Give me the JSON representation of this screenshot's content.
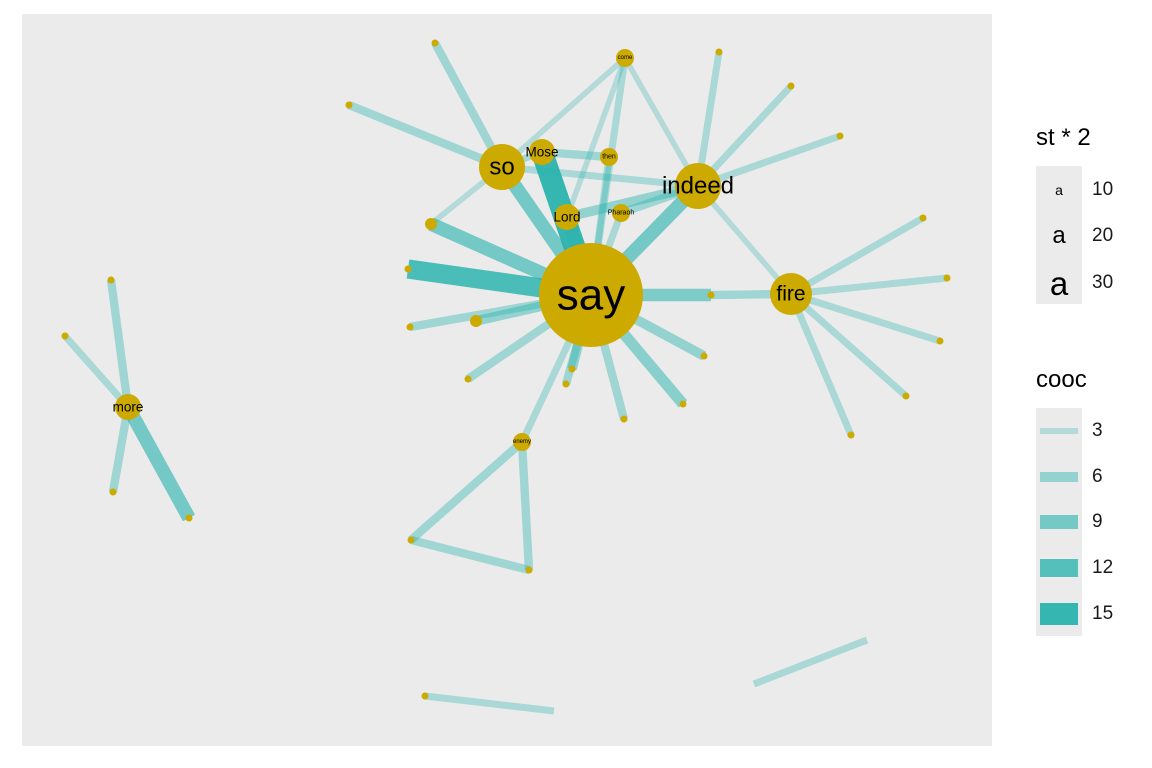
{
  "colors": {
    "panel": "#ebebeb",
    "node": "#ccaa00",
    "edge": "#2ab3ad",
    "label": "#000000"
  },
  "nodes": [
    {
      "id": "say",
      "label": "say",
      "st": 30,
      "degree": 20
    },
    {
      "id": "so",
      "label": "so",
      "st": 18,
      "degree": 8
    },
    {
      "id": "indeed",
      "label": "indeed",
      "st": 18,
      "degree": 8
    },
    {
      "id": "fire",
      "label": "fire",
      "st": 15,
      "degree": 8
    },
    {
      "id": "mose",
      "label": "Mose",
      "st": 10,
      "degree": 4
    },
    {
      "id": "lord",
      "label": "Lord",
      "st": 10,
      "degree": 4
    },
    {
      "id": "more",
      "label": "more",
      "st": 10,
      "degree": 4
    },
    {
      "id": "pharaoh",
      "label": "Pharaoh",
      "st": 6,
      "degree": 3
    },
    {
      "id": "then",
      "label": "then",
      "st": 6,
      "degree": 3
    },
    {
      "id": "come",
      "label": "come",
      "st": 5,
      "degree": 3
    },
    {
      "id": "enemy",
      "label": "enemy",
      "st": 5,
      "degree": 3
    },
    {
      "id": "n1",
      "label": "",
      "st": 3,
      "degree": 1
    },
    {
      "id": "n2",
      "label": "",
      "st": 3,
      "degree": 1
    },
    {
      "id": "n3",
      "label": "",
      "st": 3,
      "degree": 1
    },
    {
      "id": "n4",
      "label": "",
      "st": 3,
      "degree": 1
    },
    {
      "id": "n5",
      "label": "",
      "st": 3,
      "degree": 1
    },
    {
      "id": "n6",
      "label": "",
      "st": 4,
      "degree": 2
    },
    {
      "id": "n7",
      "label": "",
      "st": 4,
      "degree": 2
    },
    {
      "id": "n8",
      "label": "",
      "st": 3,
      "degree": 1
    },
    {
      "id": "n9",
      "label": "",
      "st": 3,
      "degree": 1
    },
    {
      "id": "n10",
      "label": "",
      "st": 3,
      "degree": 1
    },
    {
      "id": "n11",
      "label": "",
      "st": 3,
      "degree": 1
    },
    {
      "id": "n12",
      "label": "",
      "st": 3,
      "degree": 1
    },
    {
      "id": "n13",
      "label": "",
      "st": 3,
      "degree": 1
    },
    {
      "id": "n14",
      "label": "",
      "st": 3,
      "degree": 1
    },
    {
      "id": "n15",
      "label": "",
      "st": 3,
      "degree": 1
    },
    {
      "id": "n16",
      "label": "",
      "st": 3,
      "degree": 1
    },
    {
      "id": "n17",
      "label": "",
      "st": 3,
      "degree": 1
    },
    {
      "id": "n18",
      "label": "",
      "st": 3,
      "degree": 1
    },
    {
      "id": "n19",
      "label": "",
      "st": 3,
      "degree": 1
    },
    {
      "id": "n20",
      "label": "",
      "st": 3,
      "degree": 1
    },
    {
      "id": "n21",
      "label": "",
      "st": 3,
      "degree": 1
    },
    {
      "id": "n22",
      "label": "",
      "st": 3,
      "degree": 1
    },
    {
      "id": "n23",
      "label": "",
      "st": 3,
      "degree": 1
    },
    {
      "id": "n24",
      "label": "",
      "st": 3,
      "degree": 1
    },
    {
      "id": "n25",
      "label": "",
      "st": 3,
      "degree": 1
    },
    {
      "id": "n26",
      "label": "",
      "st": 3,
      "degree": 1
    },
    {
      "id": "n27",
      "label": "",
      "st": 3,
      "degree": 1
    },
    {
      "id": "n28",
      "label": "",
      "st": 3,
      "degree": 1
    }
  ],
  "edges": [
    {
      "source": "say",
      "target": "mose",
      "cooc": 15
    },
    {
      "source": "say",
      "target": "n8",
      "cooc": 13
    },
    {
      "source": "say",
      "target": "n7",
      "cooc": 9
    },
    {
      "source": "say",
      "target": "so",
      "cooc": 9
    },
    {
      "source": "say",
      "target": "indeed",
      "cooc": 9
    },
    {
      "source": "say",
      "target": "lord",
      "cooc": 8
    },
    {
      "source": "say",
      "target": "n14",
      "cooc": 8
    },
    {
      "source": "say",
      "target": "n13",
      "cooc": 7
    },
    {
      "source": "say",
      "target": "n15",
      "cooc": 6
    },
    {
      "source": "say",
      "target": "n16",
      "cooc": 6
    },
    {
      "source": "say",
      "target": "n6",
      "cooc": 6
    },
    {
      "source": "say",
      "target": "n9",
      "cooc": 5
    },
    {
      "source": "say",
      "target": "n10",
      "cooc": 5
    },
    {
      "source": "say",
      "target": "n11",
      "cooc": 5
    },
    {
      "source": "say",
      "target": "n12",
      "cooc": 5
    },
    {
      "source": "say",
      "target": "come",
      "cooc": 4
    },
    {
      "source": "say",
      "target": "then",
      "cooc": 4
    },
    {
      "source": "say",
      "target": "pharaoh",
      "cooc": 4
    },
    {
      "source": "say",
      "target": "enemy",
      "cooc": 4
    },
    {
      "source": "so",
      "target": "n1",
      "cooc": 5
    },
    {
      "source": "so",
      "target": "n2",
      "cooc": 5
    },
    {
      "source": "so",
      "target": "mose",
      "cooc": 4
    },
    {
      "source": "so",
      "target": "come",
      "cooc": 3
    },
    {
      "source": "so",
      "target": "indeed",
      "cooc": 4
    },
    {
      "source": "so",
      "target": "n7",
      "cooc": 3
    },
    {
      "source": "mose",
      "target": "then",
      "cooc": 5
    },
    {
      "source": "lord",
      "target": "indeed",
      "cooc": 6
    },
    {
      "source": "pharaoh",
      "target": "indeed",
      "cooc": 5
    },
    {
      "source": "indeed",
      "target": "n3",
      "cooc": 4
    },
    {
      "source": "indeed",
      "target": "n4",
      "cooc": 4
    },
    {
      "source": "indeed",
      "target": "n5",
      "cooc": 4
    },
    {
      "source": "indeed",
      "target": "come",
      "cooc": 3
    },
    {
      "source": "indeed",
      "target": "fire",
      "cooc": 3
    },
    {
      "source": "come",
      "target": "lord",
      "cooc": 3
    },
    {
      "source": "fire",
      "target": "n14",
      "cooc": 5
    },
    {
      "source": "fire",
      "target": "n17",
      "cooc": 4
    },
    {
      "source": "fire",
      "target": "n18",
      "cooc": 4
    },
    {
      "source": "fire",
      "target": "n19",
      "cooc": 4
    },
    {
      "source": "fire",
      "target": "n20",
      "cooc": 4
    },
    {
      "source": "fire",
      "target": "n21",
      "cooc": 4
    },
    {
      "source": "more",
      "target": "n22",
      "cooc": 5
    },
    {
      "source": "more",
      "target": "n23",
      "cooc": 4
    },
    {
      "source": "more",
      "target": "n24",
      "cooc": 5
    },
    {
      "source": "more",
      "target": "n25",
      "cooc": 9
    },
    {
      "source": "enemy",
      "target": "n26",
      "cooc": 5
    },
    {
      "source": "enemy",
      "target": "n27",
      "cooc": 5
    },
    {
      "source": "n26",
      "target": "n27",
      "cooc": 5
    },
    {
      "source": "n28",
      "target": "n28b",
      "cooc": 4
    },
    {
      "source": "n29",
      "target": "n30",
      "cooc": 4
    }
  ],
  "legend_st": {
    "title": "st * 2",
    "items": [
      {
        "label": "10",
        "value": 10
      },
      {
        "label": "20",
        "value": 20
      },
      {
        "label": "30",
        "value": 30
      }
    ]
  },
  "legend_cooc": {
    "title": "cooc",
    "items": [
      {
        "label": "3",
        "value": 3
      },
      {
        "label": "6",
        "value": 6
      },
      {
        "label": "9",
        "value": 9
      },
      {
        "label": "12",
        "value": 12
      },
      {
        "label": "15",
        "value": 15
      }
    ]
  }
}
